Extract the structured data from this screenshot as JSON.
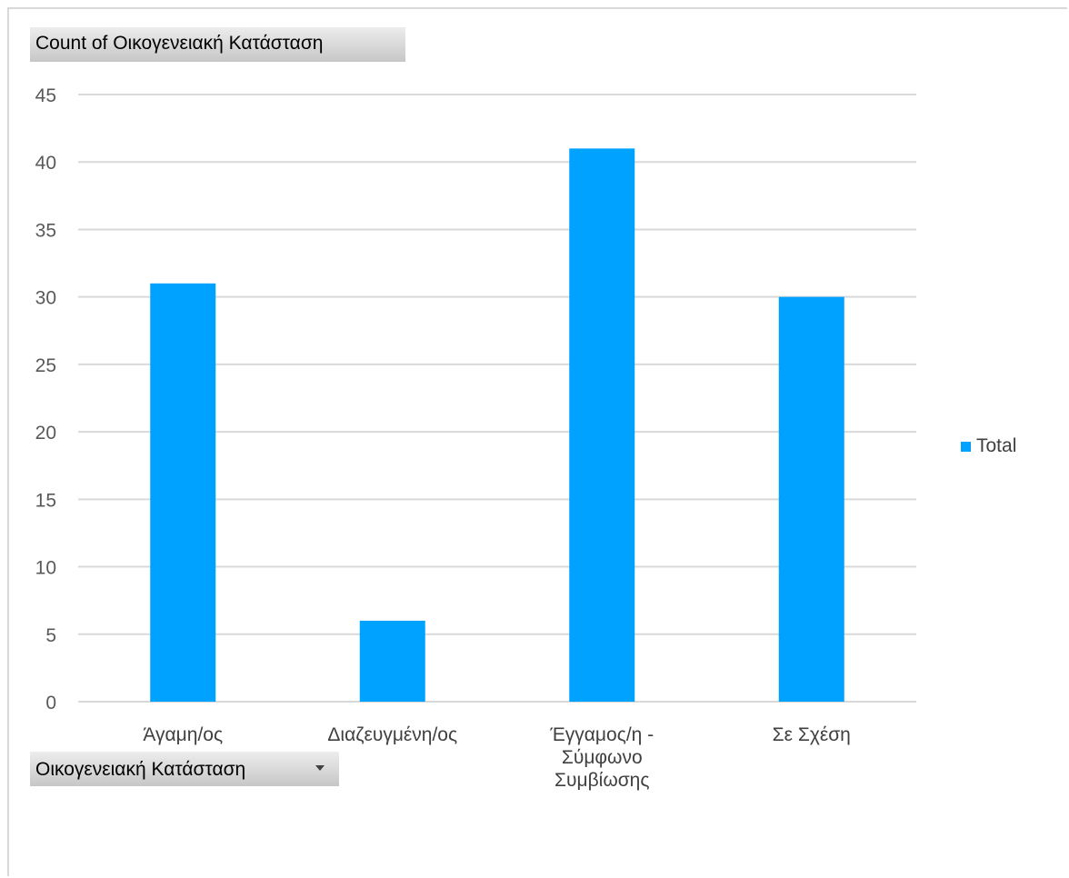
{
  "value_field_button": {
    "label": "Count of Οικογενειακή Κατάσταση"
  },
  "axis_field_button": {
    "label": "Οικογενειακή Κατάσταση",
    "icon": "chevron-down-icon"
  },
  "legend": {
    "label": "Total",
    "position": "right"
  },
  "colors": {
    "bar": "#00a2ff",
    "gridline": "#d9d9d9",
    "axis_text": "#595959",
    "category_text": "#404040"
  },
  "chart_data": {
    "type": "bar",
    "categories": [
      [
        "Άγαμη/ος"
      ],
      [
        "Διαζευγμένη/ος"
      ],
      [
        "Έγγαμος/η -",
        "Σύμφωνο",
        "Συμβίωσης"
      ],
      [
        "Σε Σχέση"
      ]
    ],
    "series": [
      {
        "name": "Total",
        "values": [
          31,
          6,
          41,
          30
        ]
      }
    ],
    "ylim": [
      0,
      45
    ],
    "yticks": [
      "0",
      "5",
      "10",
      "15",
      "20",
      "25",
      "30",
      "35",
      "40",
      "45"
    ],
    "grid": true,
    "legend": "right"
  }
}
